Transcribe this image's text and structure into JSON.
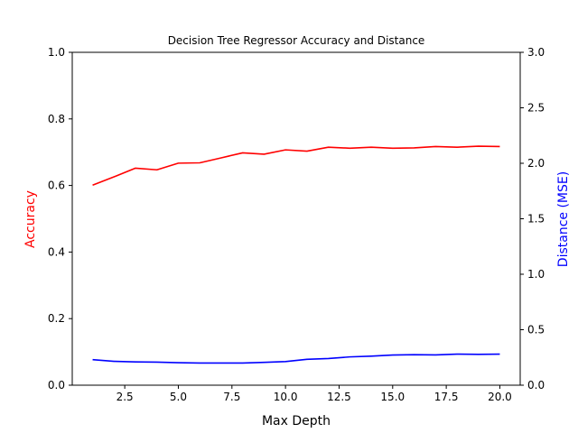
{
  "chart_data": {
    "type": "line",
    "title": "Decision Tree Regressor Accuracy and Distance",
    "xlabel": "Max Depth",
    "ylabel_left": "Accuracy",
    "ylabel_right": "Distance (MSE)",
    "xlim": [
      0.05,
      20.95
    ],
    "ylim_left": [
      0,
      1.0
    ],
    "ylim_right": [
      0,
      3.0
    ],
    "x_ticks": [
      2.5,
      5.0,
      7.5,
      10.0,
      12.5,
      15.0,
      17.5,
      20.0
    ],
    "x_tick_labels": [
      "2.5",
      "5.0",
      "7.5",
      "10.0",
      "12.5",
      "15.0",
      "17.5",
      "20.0"
    ],
    "y_left_ticks": [
      0,
      0.2,
      0.4,
      0.6,
      0.8,
      1.0
    ],
    "y_left_tick_labels": [
      "0.0",
      "0.2",
      "0.4",
      "0.6",
      "0.8",
      "1.0"
    ],
    "y_right_ticks": [
      0,
      0.5,
      1.0,
      1.5,
      2.0,
      2.5,
      3.0
    ],
    "y_right_tick_labels": [
      "0.0",
      "0.5",
      "1.0",
      "1.5",
      "2.0",
      "2.5",
      "3.0"
    ],
    "grid": false,
    "x": [
      1,
      2,
      3,
      4,
      5,
      6,
      7,
      8,
      9,
      10,
      11,
      12,
      13,
      14,
      15,
      16,
      17,
      18,
      19,
      20
    ],
    "series": [
      {
        "axis": "left",
        "color": "#ff0000",
        "values": [
          0.601,
          0.626,
          0.652,
          0.647,
          0.667,
          0.668,
          0.683,
          0.698,
          0.694,
          0.707,
          0.703,
          0.715,
          0.712,
          0.715,
          0.712,
          0.713,
          0.717,
          0.715,
          0.718,
          0.717
        ]
      },
      {
        "axis": "right",
        "color": "#0000ff",
        "values": [
          0.23,
          0.215,
          0.21,
          0.208,
          0.203,
          0.2,
          0.2,
          0.2,
          0.206,
          0.213,
          0.233,
          0.24,
          0.255,
          0.262,
          0.272,
          0.275,
          0.273,
          0.28,
          0.278,
          0.28
        ]
      }
    ],
    "colors": {
      "left_label": "#ff0000",
      "right_label": "#0000ff",
      "axis": "#000000"
    }
  }
}
